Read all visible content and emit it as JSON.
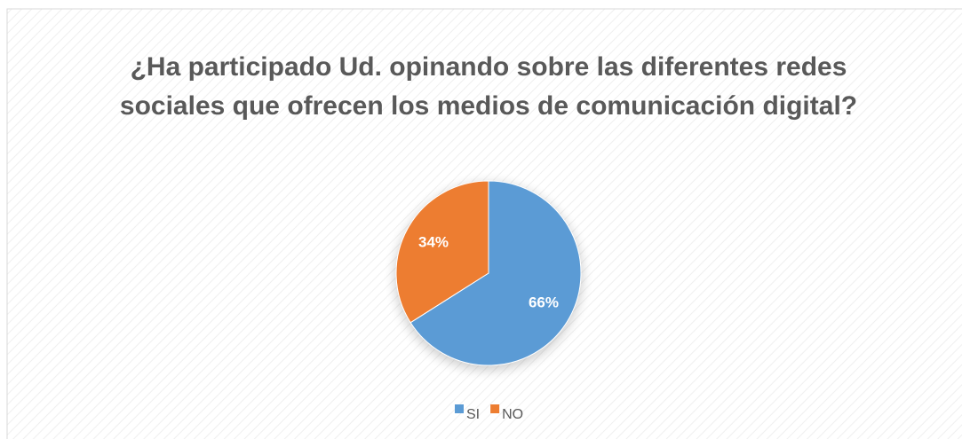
{
  "chart_data": {
    "type": "pie",
    "title": "¿Ha participado Ud. opinando sobre las diferentes redes sociales que ofrecen los medios de comunicación digital?",
    "categories": [
      "SI",
      "NO"
    ],
    "values": [
      66,
      34
    ],
    "value_labels": [
      "66%",
      "34%"
    ],
    "colors": [
      "#5b9bd5",
      "#ed7d31"
    ],
    "legend": "bottom"
  }
}
